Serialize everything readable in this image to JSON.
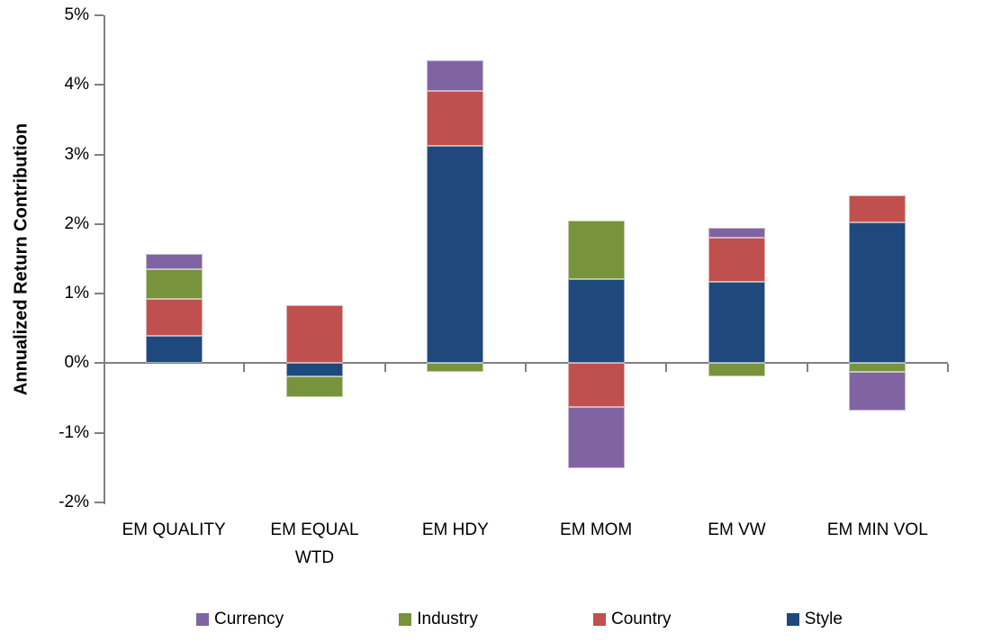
{
  "chart_data": {
    "type": "bar",
    "variant": "stacked-column",
    "title": "",
    "xlabel": "",
    "ylabel": "Annualized Return Contribution",
    "ylim": [
      -2,
      5
    ],
    "ytick_step": 1,
    "ytick_suffix": "%",
    "grid": false,
    "axis_color": "#808080",
    "text_color": "#000000",
    "background": "#FFFFFF",
    "categories": [
      "EM QUALITY",
      "EM EQUAL\nWTD",
      "EM HDY",
      "EM MOM",
      "EM VW",
      "EM MIN VOL"
    ],
    "series": [
      {
        "name": "Style",
        "color": "#1F497D",
        "values": [
          0.4,
          -0.19,
          3.12,
          1.21,
          1.17,
          2.03
        ]
      },
      {
        "name": "Country",
        "color": "#C0504D",
        "values": [
          0.53,
          0.84,
          0.79,
          -0.63,
          0.64,
          0.38
        ]
      },
      {
        "name": "Industry",
        "color": "#77933C",
        "values": [
          0.42,
          -0.3,
          -0.13,
          0.84,
          -0.19,
          -0.12
        ]
      },
      {
        "name": "Currency",
        "color": "#8064A2",
        "values": [
          0.22,
          0.0,
          0.44,
          -0.88,
          0.13,
          -0.56
        ]
      }
    ],
    "legend": {
      "position": "bottom",
      "order": [
        "Currency",
        "Industry",
        "Country",
        "Style"
      ]
    }
  }
}
